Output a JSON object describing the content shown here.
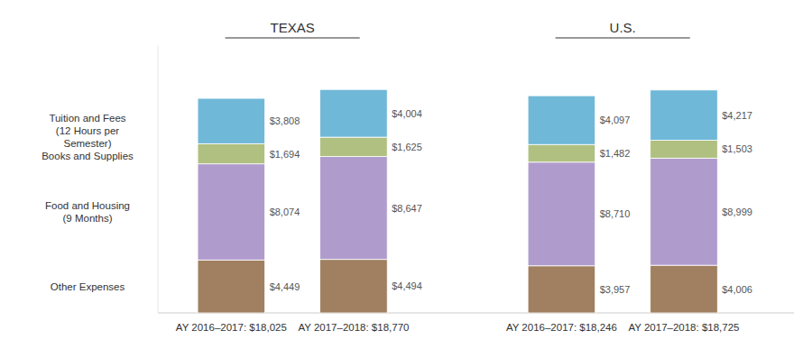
{
  "chart_data": {
    "type": "bar",
    "stacked": true,
    "data_labels": true,
    "tick_labels": "x",
    "categories": [
      "AY 2016–2017: $18,025",
      "AY 2017–2018: $18,770",
      "AY 2016–2017: $18,246",
      "AY 2017–2018: $18,725"
    ],
    "series": [
      {
        "name": "Other Expenses",
        "color": "#a08060",
        "values": [
          4449,
          4494,
          3957,
          4006
        ],
        "value_labels": [
          "$4,449",
          "$4,494",
          "$3,957",
          "$4,006"
        ]
      },
      {
        "name": "Food and Housing",
        "color": "#b09ccc",
        "values": [
          8074,
          8647,
          8710,
          8999
        ],
        "value_labels": [
          "$8,074",
          "$8,647",
          "$8,710",
          "$8,999"
        ]
      },
      {
        "name": "Books and Supplies",
        "color": "#b0c080",
        "values": [
          1694,
          1625,
          1482,
          1503
        ],
        "value_labels": [
          "$1,694",
          "$1,625",
          "$1,482",
          "$1,503"
        ]
      },
      {
        "name": "Tuition and Fees",
        "color": "#70b8d8",
        "values": [
          3808,
          4004,
          4097,
          4217
        ],
        "value_labels": [
          "$3,808",
          "$4,004",
          "$4,097",
          "$4,217"
        ]
      }
    ],
    "ylim": [
      0,
      22500
    ],
    "annotations": [
      {
        "text": "TEXAS",
        "categories": [
          "AY 2016–2017: $18,025",
          "AY 2017–2018: $18,770"
        ]
      },
      {
        "text": "U.S.",
        "categories": [
          "AY 2016–2017: $18,246",
          "AY 2017–2018: $18,725"
        ]
      },
      {
        "text": "Tuition and Fees\n(12 Hours per\nSemester)\nBooks and Supplies",
        "series": [
          "Tuition and Fees",
          "Books and Supplies"
        ]
      },
      {
        "text": "Food and Housing\n(9 Months)",
        "series": [
          "Food and Housing"
        ]
      },
      {
        "text": "Other Expenses",
        "series": [
          "Other Expenses"
        ]
      }
    ]
  }
}
